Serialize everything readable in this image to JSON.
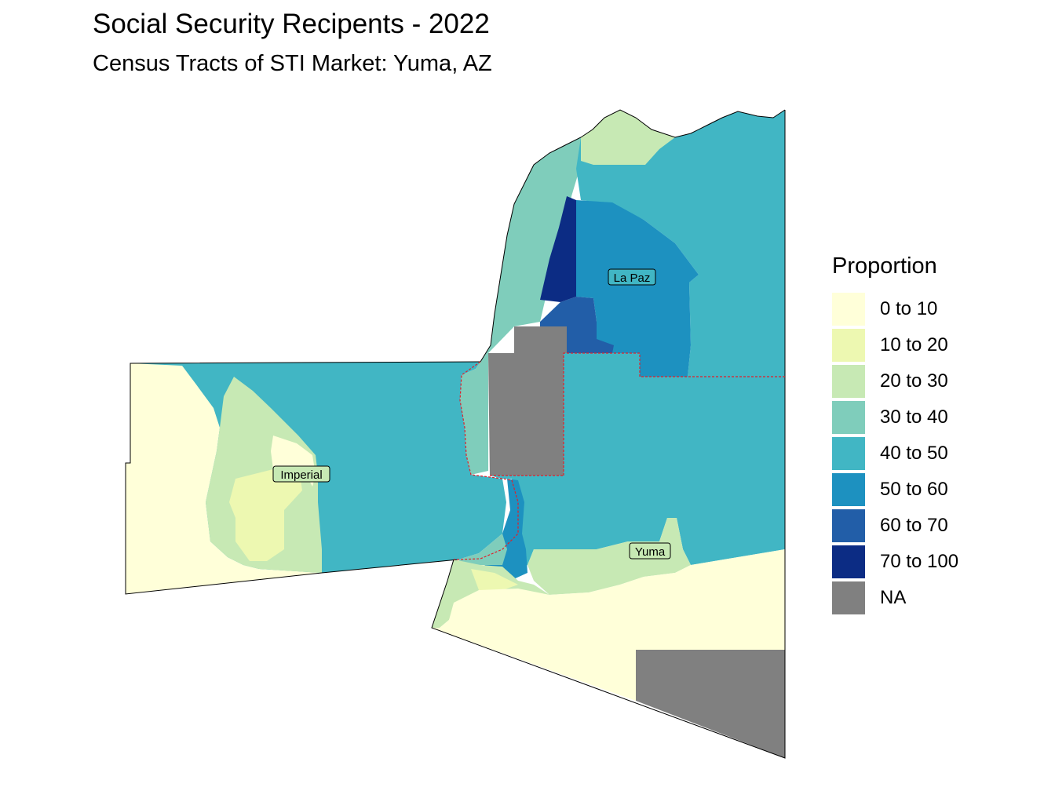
{
  "title": "Social Security Recipents - 2022",
  "subtitle": "Census Tracts of STI Market: Yuma, AZ",
  "legend": {
    "title": "Proportion",
    "classes": [
      {
        "label": "0 to 10",
        "color": "#ffffd9"
      },
      {
        "label": "10 to 20",
        "color": "#edf8b1"
      },
      {
        "label": "20 to 30",
        "color": "#c7e9b4"
      },
      {
        "label": "30 to 40",
        "color": "#7fcdbb"
      },
      {
        "label": "40 to 50",
        "color": "#41b6c4"
      },
      {
        "label": "50 to 60",
        "color": "#1d91c0"
      },
      {
        "label": "60 to 70",
        "color": "#225ea8"
      },
      {
        "label": "70 to 100",
        "color": "#0c2c84"
      },
      {
        "label": "NA",
        "color": "#808080"
      }
    ]
  },
  "county_labels": {
    "la_paz": "La Paz",
    "imperial": "Imperial",
    "yuma": "Yuma"
  },
  "colors": {
    "state_border": "#e0202a",
    "outline": "#000000"
  }
}
